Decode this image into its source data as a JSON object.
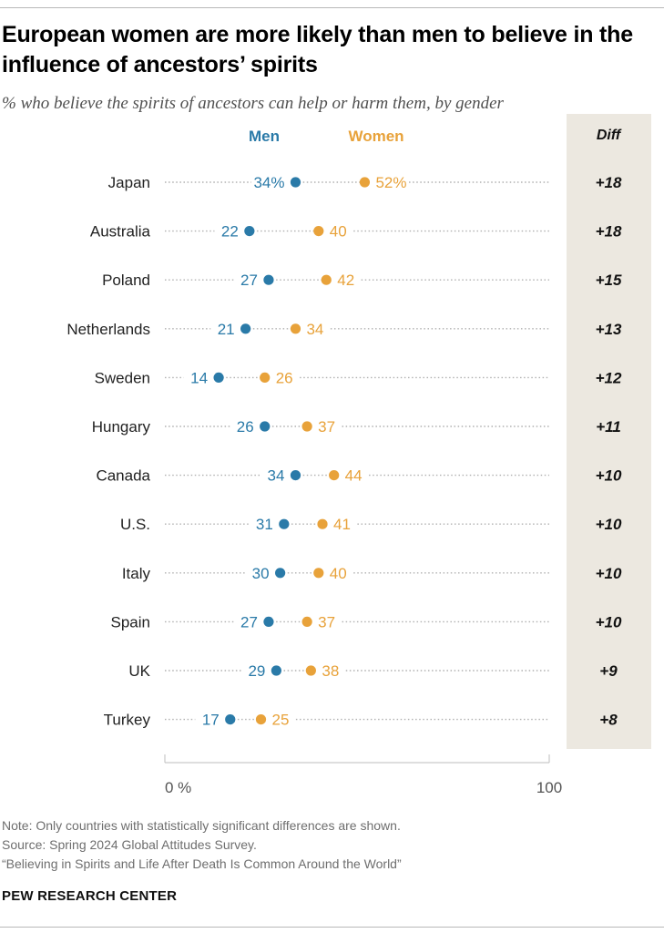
{
  "header": {
    "title": "European women are more likely than men to believe in the influence of ancestors’ spirits",
    "subtitle": "% who believe the spirits of ancestors can help or harm them, by gender"
  },
  "colors": {
    "men": "#2a7aa8",
    "women": "#e8a23a",
    "diff_panel": "#ece8e0",
    "dotted_line": "#b0b0b0",
    "axis": "#bdbdbd",
    "label": "#222222"
  },
  "chart_data": {
    "type": "dot",
    "title": "European women are more likely than men to believe in the influence of ancestors’ spirits",
    "subtitle": "% who believe the spirits of ancestors can help or harm them, by gender",
    "categories": [
      "Japan",
      "Australia",
      "Poland",
      "Netherlands",
      "Sweden",
      "Hungary",
      "Canada",
      "U.S.",
      "Italy",
      "Spain",
      "UK",
      "Turkey"
    ],
    "series": [
      {
        "name": "Men",
        "values": [
          34,
          22,
          27,
          21,
          14,
          26,
          34,
          31,
          30,
          27,
          29,
          17
        ]
      },
      {
        "name": "Women",
        "values": [
          52,
          40,
          42,
          34,
          26,
          37,
          44,
          41,
          40,
          37,
          38,
          25
        ]
      }
    ],
    "diff_header": "Diff",
    "diff": [
      "+18",
      "+18",
      "+15",
      "+13",
      "+12",
      "+11",
      "+10",
      "+10",
      "+10",
      "+10",
      "+9",
      "+8"
    ],
    "first_label_suffix": "%",
    "xlim": [
      0,
      100
    ],
    "xticks": [
      {
        "value": 0,
        "label": "0 %"
      },
      {
        "value": 100,
        "label": "100"
      }
    ],
    "legend": [
      "Men",
      "Women"
    ],
    "legend_position": "top"
  },
  "footer": {
    "note": "Note: Only countries with statistically significant differences are shown.",
    "source": "Source: Spring 2024 Global Attitudes Survey.",
    "report": "“Believing in Spirits and Life After Death Is Common Around the World”",
    "brand": "PEW RESEARCH CENTER"
  }
}
